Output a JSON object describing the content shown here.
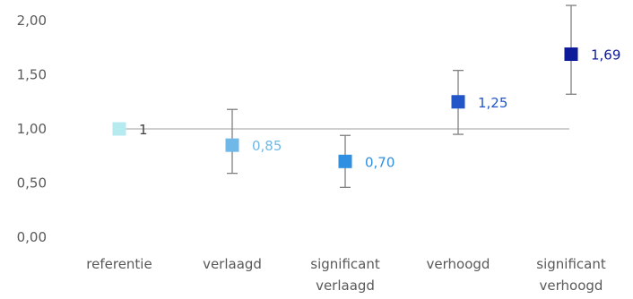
{
  "chart_data": {
    "type": "scatter",
    "title": "",
    "xlabel": "",
    "ylabel": "",
    "ylim": [
      0,
      2
    ],
    "yticks": [
      "0,00",
      "0,50",
      "1,00",
      "1,50",
      "2,00"
    ],
    "yticks_values": [
      0,
      0.5,
      1.0,
      1.5,
      2.0
    ],
    "grid": false,
    "legend": "none",
    "reference_line": {
      "y": 1.0,
      "color": "#bfbfbf"
    },
    "categories": [
      [
        "referentie"
      ],
      [
        "verlaagd"
      ],
      [
        "significant",
        "verlaagd"
      ],
      [
        "verhoogd"
      ],
      [
        "significant",
        "verhoogd"
      ]
    ],
    "points": [
      {
        "value": 1.0,
        "label": "1",
        "err_low": null,
        "err_high": null,
        "color": "#b4eaf0",
        "label_color": "#404040"
      },
      {
        "value": 0.85,
        "label": "0,85",
        "err_low": 0.59,
        "err_high": 1.18,
        "color": "#6fb8e8",
        "label_color": "#6fb8e8"
      },
      {
        "value": 0.7,
        "label": "0,70",
        "err_low": 0.46,
        "err_high": 0.94,
        "color": "#2f8fe0",
        "label_color": "#2f8fe0"
      },
      {
        "value": 1.25,
        "label": "1,25",
        "err_low": 0.95,
        "err_high": 1.54,
        "color": "#2255c8",
        "label_color": "#2255c8"
      },
      {
        "value": 1.69,
        "label": "1,69",
        "err_low": 1.32,
        "err_high": 2.14,
        "color": "#0d1a99",
        "label_color": "#0d1a99"
      }
    ],
    "errorbar_color": "#808080"
  }
}
